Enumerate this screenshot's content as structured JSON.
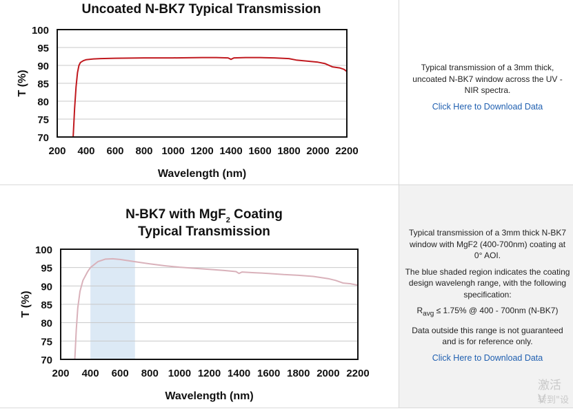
{
  "charts": [
    {
      "panel": "uncoated",
      "chart_data": {
        "type": "line",
        "title_lines": [
          "Uncoated N-BK7 Typical Transmission"
        ],
        "xlabel": "Wavelength (nm)",
        "ylabel": "T (%)",
        "xlim": [
          200,
          2200
        ],
        "ylim": [
          70,
          100
        ],
        "x_ticks": [
          "200",
          "400",
          "600",
          "800",
          "1000",
          "1200",
          "1400",
          "1600",
          "1800",
          "2000",
          "2200"
        ],
        "y_ticks": [
          "70",
          "75",
          "80",
          "85",
          "90",
          "95",
          "100"
        ],
        "grid": true,
        "line_color": "#c0181e",
        "series": [
          {
            "x": [
              310,
              320,
              330,
              340,
              350,
              360,
              380,
              400,
              450,
              500,
              600,
              800,
              1000,
              1200,
              1300,
              1380,
              1400,
              1420,
              1500,
              1600,
              1700,
              1800,
              1850,
              1900,
              2000,
              2050,
              2100,
              2150,
              2180,
              2200
            ],
            "y": [
              70,
              78,
              84,
              88,
              90,
              90.8,
              91.3,
              91.6,
              91.8,
              91.9,
              92.0,
              92.1,
              92.1,
              92.2,
              92.2,
              92.1,
              91.7,
              92.1,
              92.2,
              92.2,
              92.1,
              91.9,
              91.5,
              91.3,
              90.9,
              90.5,
              89.6,
              89.3,
              88.9,
              88.3
            ]
          }
        ]
      },
      "description": [
        "Typical transmission of a 3mm thick, uncoated N-BK7 window across the UV - NIR spectra."
      ],
      "link": "Click Here to Download Data"
    },
    {
      "panel": "mgf2",
      "chart_data": {
        "type": "line",
        "title_lines": [
          "N-BK7 with MgF2 Coating",
          "Typical Transmission"
        ],
        "xlabel": "Wavelength (nm)",
        "ylabel": "T (%)",
        "xlim": [
          200,
          2200
        ],
        "ylim": [
          70,
          100
        ],
        "x_ticks": [
          "200",
          "400",
          "600",
          "800",
          "1000",
          "1200",
          "1400",
          "1600",
          "1800",
          "2000",
          "2200"
        ],
        "y_ticks": [
          "70",
          "75",
          "80",
          "85",
          "90",
          "95",
          "100"
        ],
        "grid": true,
        "line_color": "#d9b1ba",
        "shaded_region": {
          "x": [
            400,
            700
          ],
          "color": "#dce9f5"
        },
        "series": [
          {
            "x": [
              295,
              305,
              315,
              330,
              350,
              380,
              400,
              450,
              500,
              550,
              600,
              700,
              800,
              900,
              1000,
              1200,
              1300,
              1380,
              1400,
              1420,
              1500,
              1600,
              1700,
              1800,
              1900,
              2000,
              2050,
              2100,
              2150,
              2200
            ],
            "y": [
              70,
              78,
              84,
              88.5,
              91.5,
              93.8,
              95.0,
              96.6,
              97.3,
              97.4,
              97.2,
              96.6,
              96.0,
              95.5,
              95.1,
              94.5,
              94.2,
              93.9,
              93.4,
              93.8,
              93.6,
              93.4,
              93.1,
              92.9,
              92.6,
              92.0,
              91.5,
              90.8,
              90.6,
              90.2
            ]
          }
        ]
      },
      "description": [
        "Typical transmission of a 3mm thick N-BK7 window with MgF2 (400-700nm) coating at 0° AOI.",
        "The blue shaded region indicates the coating design wavelengh range, with the following specification:",
        "R",
        "avg",
        " ≤ 1.75% @ 400 - 700nm (N-BK7)",
        "Data outside this range is not guaranteed and is for reference only."
      ],
      "link": "Click Here to Download Data"
    }
  ],
  "watermark": [
    "激活 V",
    "转到\"设"
  ]
}
